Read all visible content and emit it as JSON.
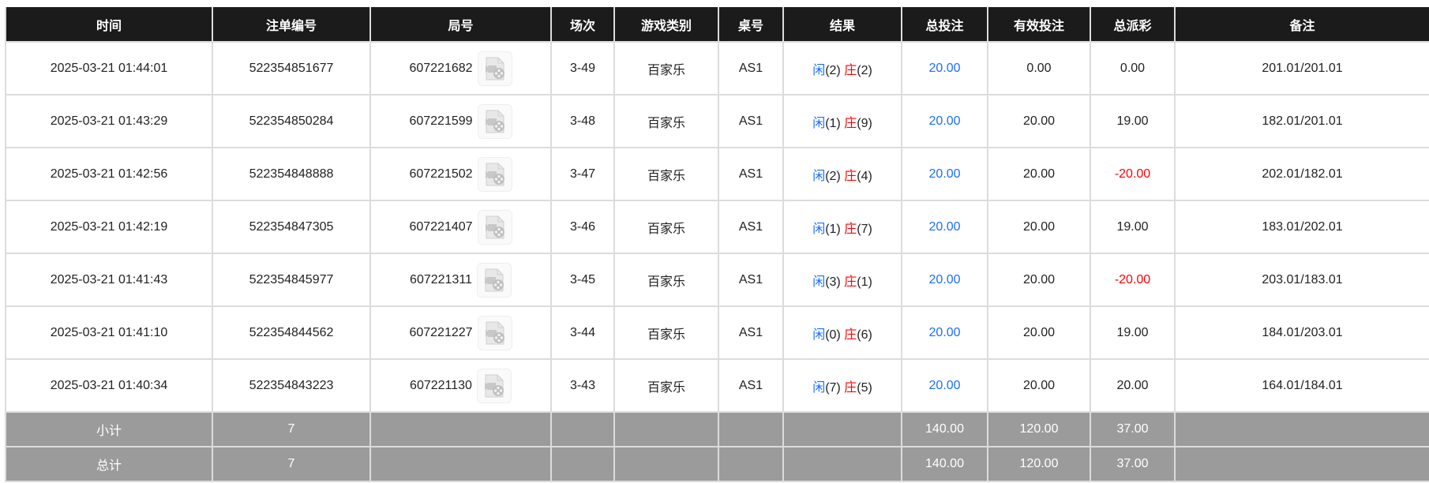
{
  "headers": [
    "时间",
    "注单编号",
    "局号",
    "场次",
    "游戏类别",
    "桌号",
    "结果",
    "总投注",
    "有效投注",
    "总派彩",
    "备注"
  ],
  "colors": {
    "player": "#1a6fff",
    "banker": "#ff0000",
    "negative": "#ff0000",
    "bet": "#1a6fff",
    "header_bg": "#1b1b1b",
    "footer_bg": "#9b9b9b"
  },
  "rows": [
    {
      "time": "2025-03-21 01:44:01",
      "bet_id": "522354851677",
      "round": "607221682",
      "shoe": "3-49",
      "game": "百家乐",
      "table": "AS1",
      "player": "闲",
      "player_pts": "(2)",
      "banker": "庄",
      "banker_pts": "(2)",
      "total_bet": "20.00",
      "valid_bet": "0.00",
      "payout": "0.00",
      "note": "201.01/201.01"
    },
    {
      "time": "2025-03-21 01:43:29",
      "bet_id": "522354850284",
      "round": "607221599",
      "shoe": "3-48",
      "game": "百家乐",
      "table": "AS1",
      "player": "闲",
      "player_pts": "(1)",
      "banker": "庄",
      "banker_pts": "(9)",
      "total_bet": "20.00",
      "valid_bet": "20.00",
      "payout": "19.00",
      "note": "182.01/201.01"
    },
    {
      "time": "2025-03-21 01:42:56",
      "bet_id": "522354848888",
      "round": "607221502",
      "shoe": "3-47",
      "game": "百家乐",
      "table": "AS1",
      "player": "闲",
      "player_pts": "(2)",
      "banker": "庄",
      "banker_pts": "(4)",
      "total_bet": "20.00",
      "valid_bet": "20.00",
      "payout": "-20.00",
      "note": "202.01/182.01"
    },
    {
      "time": "2025-03-21 01:42:19",
      "bet_id": "522354847305",
      "round": "607221407",
      "shoe": "3-46",
      "game": "百家乐",
      "table": "AS1",
      "player": "闲",
      "player_pts": "(1)",
      "banker": "庄",
      "banker_pts": "(7)",
      "total_bet": "20.00",
      "valid_bet": "20.00",
      "payout": "19.00",
      "note": "183.01/202.01"
    },
    {
      "time": "2025-03-21 01:41:43",
      "bet_id": "522354845977",
      "round": "607221311",
      "shoe": "3-45",
      "game": "百家乐",
      "table": "AS1",
      "player": "闲",
      "player_pts": "(3)",
      "banker": "庄",
      "banker_pts": "(1)",
      "total_bet": "20.00",
      "valid_bet": "20.00",
      "payout": "-20.00",
      "note": "203.01/183.01"
    },
    {
      "time": "2025-03-21 01:41:10",
      "bet_id": "522354844562",
      "round": "607221227",
      "shoe": "3-44",
      "game": "百家乐",
      "table": "AS1",
      "player": "闲",
      "player_pts": "(0)",
      "banker": "庄",
      "banker_pts": "(6)",
      "total_bet": "20.00",
      "valid_bet": "20.00",
      "payout": "19.00",
      "note": "184.01/203.01"
    },
    {
      "time": "2025-03-21 01:40:34",
      "bet_id": "522354843223",
      "round": "607221130",
      "shoe": "3-43",
      "game": "百家乐",
      "table": "AS1",
      "player": "闲",
      "player_pts": "(7)",
      "banker": "庄",
      "banker_pts": "(5)",
      "total_bet": "20.00",
      "valid_bet": "20.00",
      "payout": "20.00",
      "note": "164.01/184.01"
    }
  ],
  "footer": [
    {
      "label": "小计",
      "count": "7",
      "total_bet": "140.00",
      "valid_bet": "120.00",
      "payout": "37.00"
    },
    {
      "label": "总计",
      "count": "7",
      "total_bet": "140.00",
      "valid_bet": "120.00",
      "payout": "37.00"
    }
  ],
  "icon": "video-replay-icon"
}
